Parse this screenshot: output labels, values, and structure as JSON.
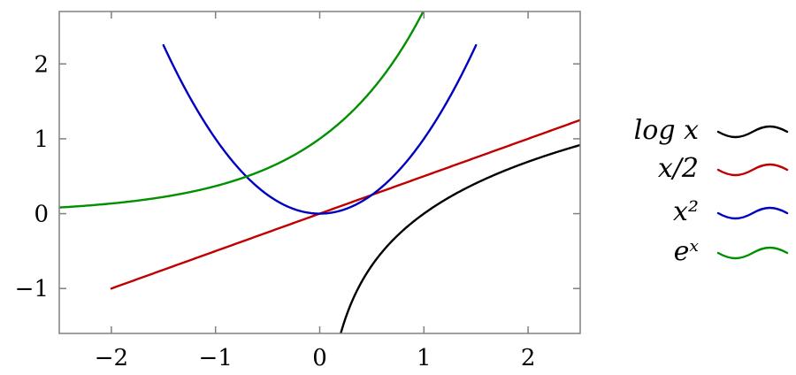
{
  "chart_data": {
    "type": "line",
    "title": "",
    "xlabel": "",
    "ylabel": "",
    "xlim": [
      -2.5,
      2.5
    ],
    "ylim": [
      -1.6,
      2.7
    ],
    "xticks": [
      -2,
      -1,
      0,
      1,
      2
    ],
    "xtick_labels": [
      "−2",
      "−1",
      "0",
      "1",
      "2"
    ],
    "yticks": [
      -1,
      0,
      1,
      2
    ],
    "ytick_labels": [
      "−1",
      "0",
      "1",
      "2"
    ],
    "grid": false,
    "legend_position": "right, outside plot",
    "series": [
      {
        "name": "log x",
        "color": "#000000",
        "function": "log",
        "x": [
          0.2,
          0.25,
          0.3,
          0.4,
          0.5,
          0.6,
          0.7,
          0.8,
          1.0,
          1.25,
          1.5,
          1.75,
          2.0,
          2.25,
          2.5
        ],
        "y": [
          -1.609,
          -1.386,
          -1.204,
          -0.916,
          -0.693,
          -0.511,
          -0.357,
          -0.223,
          0.0,
          0.223,
          0.405,
          0.56,
          0.693,
          0.811,
          0.916
        ]
      },
      {
        "name": "x/2",
        "color": "#c00000",
        "function": "half",
        "x": [
          -2,
          -1,
          0,
          1,
          2,
          2.5
        ],
        "y": [
          -1.0,
          -0.5,
          0.0,
          0.5,
          1.0,
          1.25
        ]
      },
      {
        "name": "x²",
        "color": "#0000c0",
        "function": "square",
        "x": [
          -1.5,
          -1.0,
          -0.5,
          0.0,
          0.5,
          1.0,
          1.5
        ],
        "y": [
          2.25,
          1.0,
          0.25,
          0.0,
          0.25,
          1.0,
          2.25
        ]
      },
      {
        "name": "eˣ",
        "color": "#009000",
        "function": "exp",
        "x": [
          -2.5,
          -2.0,
          -1.5,
          -1.0,
          -0.5,
          0.0,
          0.5,
          0.99
        ],
        "y": [
          0.082,
          0.135,
          0.223,
          0.368,
          0.607,
          1.0,
          1.649,
          2.691
        ]
      }
    ]
  }
}
